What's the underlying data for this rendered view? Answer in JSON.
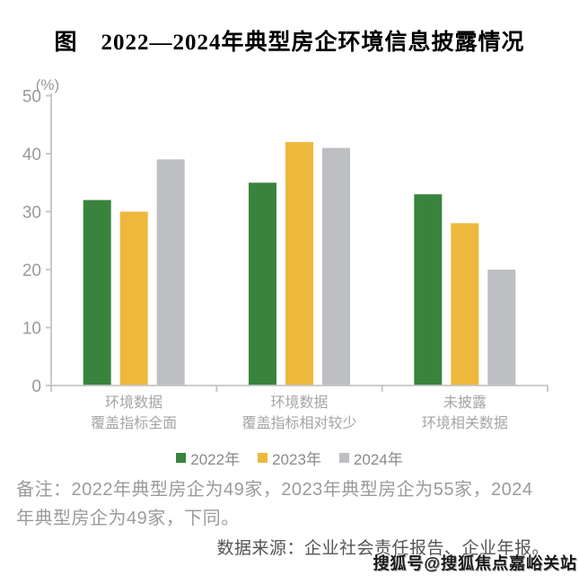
{
  "chart_data": {
    "type": "bar",
    "title": "图　2022—2024年典型房企环境信息披露情况",
    "unit_label": "(%)",
    "categories": [
      [
        "环境数据",
        "覆盖指标全面"
      ],
      [
        "环境数据",
        "覆盖指标相对较少"
      ],
      [
        "未披露",
        "环境相关数据"
      ]
    ],
    "series": [
      {
        "name": "2022年",
        "color": "#38843F",
        "values": [
          32,
          35,
          33
        ]
      },
      {
        "name": "2023年",
        "color": "#EDB83C",
        "values": [
          30,
          42,
          28
        ]
      },
      {
        "name": "2024年",
        "color": "#BEBFC2",
        "values": [
          39,
          41,
          20
        ]
      }
    ],
    "ylim": [
      0,
      50
    ],
    "ytick_interval": 10,
    "ytick_labels": [
      "0",
      "10",
      "20",
      "30",
      "40",
      "50"
    ],
    "grid": false,
    "legend_position": "bottom",
    "axis_color": "#c4c4c4"
  },
  "note": {
    "line1": "备注：2022年典型房企为49家，2023年典型房企为55家，2024",
    "line2": "年典型房企为49家，下同。"
  },
  "source": {
    "text": "数据来源：企业社会责任报告、企业年报。"
  },
  "watermark": {
    "text": "搜狐号@搜狐焦点嘉峪关站"
  }
}
